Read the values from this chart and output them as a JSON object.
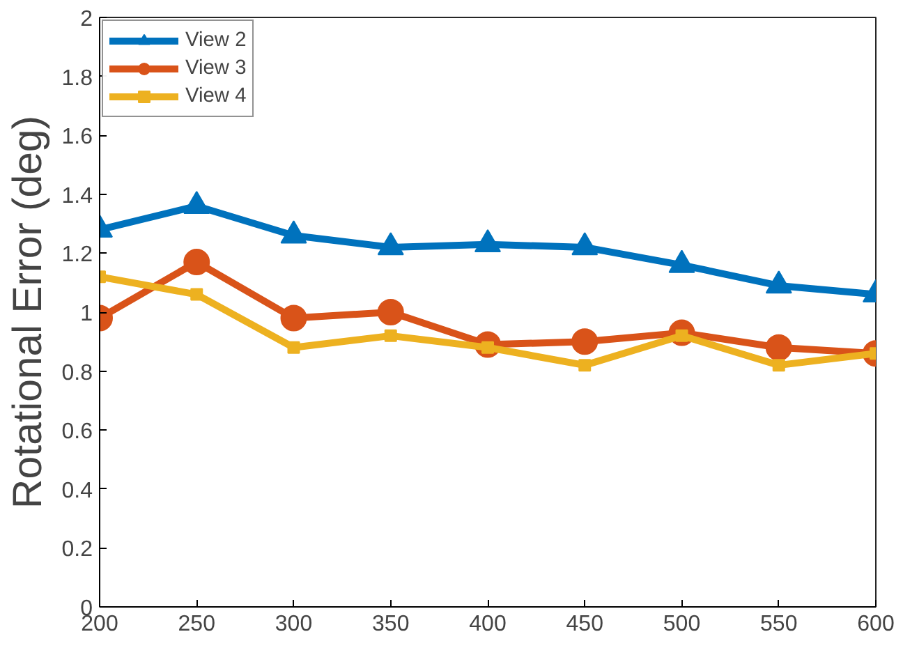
{
  "chart_data": {
    "type": "line",
    "ylabel": "Rotational Error (deg)",
    "x": [
      200,
      250,
      300,
      350,
      400,
      450,
      500,
      550,
      600
    ],
    "xlim": [
      200,
      600
    ],
    "xticks": [
      200,
      250,
      300,
      350,
      400,
      450,
      500,
      550,
      600
    ],
    "ylim": [
      0,
      2
    ],
    "yticks": [
      0,
      0.2,
      0.4,
      0.6,
      0.8,
      1,
      1.2,
      1.4,
      1.6,
      1.8,
      2
    ],
    "grid": false,
    "legend": "top left",
    "line_style": "solid",
    "series": [
      {
        "name": "View 2",
        "color": "#0072bd",
        "marker": "triangle",
        "values": [
          1.28,
          1.36,
          1.26,
          1.22,
          1.23,
          1.22,
          1.16,
          1.09,
          1.06
        ]
      },
      {
        "name": "View 3",
        "color": "#d95319",
        "marker": "circle",
        "values": [
          0.98,
          1.17,
          0.98,
          1.0,
          0.89,
          0.9,
          0.93,
          0.88,
          0.86
        ]
      },
      {
        "name": "View 4",
        "color": "#edb120",
        "marker": "square",
        "values": [
          1.12,
          1.06,
          0.88,
          0.92,
          0.88,
          0.82,
          0.92,
          0.82,
          0.86
        ]
      }
    ]
  }
}
